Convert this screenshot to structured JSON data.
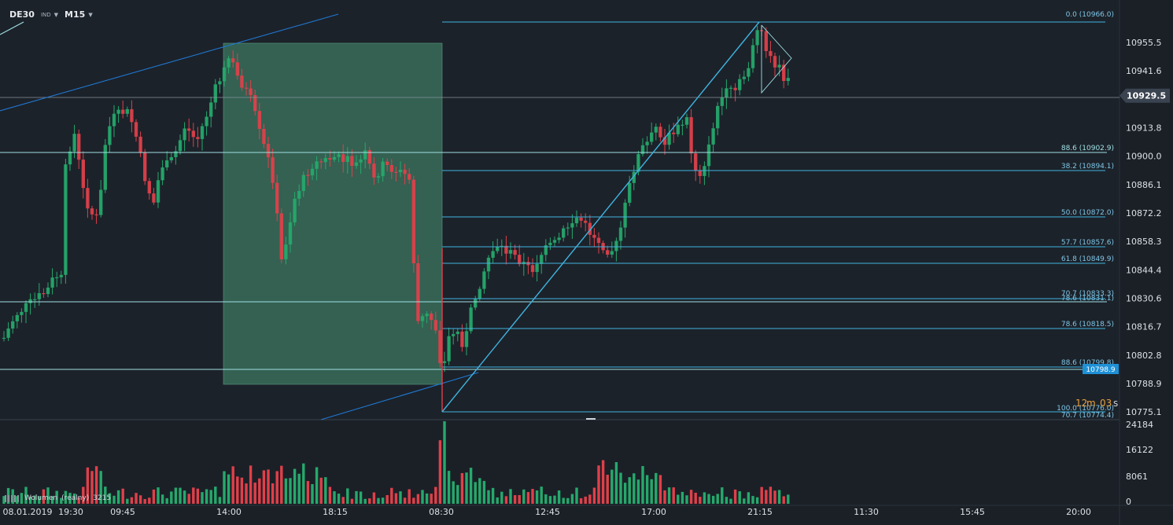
{
  "header": {
    "symbol": "DE30",
    "market_tag": "IND",
    "timeframe": "M15",
    "dropdown_icon": "caret-down-icon"
  },
  "price_axis": {
    "labels": [
      "10955.5",
      "10941.6",
      "10913.8",
      "10900.0",
      "10886.1",
      "10872.2",
      "10858.3",
      "10844.4",
      "10830.6",
      "10816.7",
      "10802.8",
      "10788.9",
      "10775.1"
    ],
    "current_price": "10929.5",
    "marker_price": "10798.9",
    "current_color": "#3a4350",
    "marker_color": "#1e90d6"
  },
  "time_axis": {
    "labels": [
      "08.01.2019",
      "19:30",
      "09:45",
      "14:00",
      "18:15",
      "08:30",
      "12:45",
      "17:00",
      "21:15",
      "11:30",
      "15:45",
      "20:00"
    ]
  },
  "volume_axis": {
    "labels": [
      "24184",
      "16122",
      "8061",
      "0"
    ]
  },
  "volume_legend": {
    "name": "Wolumen",
    "qualifier": "(realny)",
    "value": "3215"
  },
  "timer": {
    "minutes": "12",
    "m_unit": "m",
    "seconds": "03",
    "s_unit": "s"
  },
  "fib_labels": {
    "top": "0.0 (10966.0)",
    "l886_a": "88.6 (10902.9)",
    "l382": "38.2 (10894.1)",
    "l500": "50.0 (10872.0)",
    "l577": "57.7 (10857.6)",
    "l618": "61.8 (10849.9)",
    "l707": "70.7 (10833.3)",
    "l786_a": "78.6 (10831.1)",
    "l786_b": "78.6 (10818.5)",
    "l886_b": "88.6 (10799.8)",
    "l1000": "100.0 (10776.0)",
    "l707_b": "70.7 (10774.4)"
  },
  "colors": {
    "background": "#1b2027",
    "bull": "#26a96c",
    "bear": "#e0404a",
    "level_line": "#9fe0e4",
    "trend_line": "#1e78d2",
    "fib_line": "#3fb4e0",
    "zone_fill": "#3f7a62"
  }
}
